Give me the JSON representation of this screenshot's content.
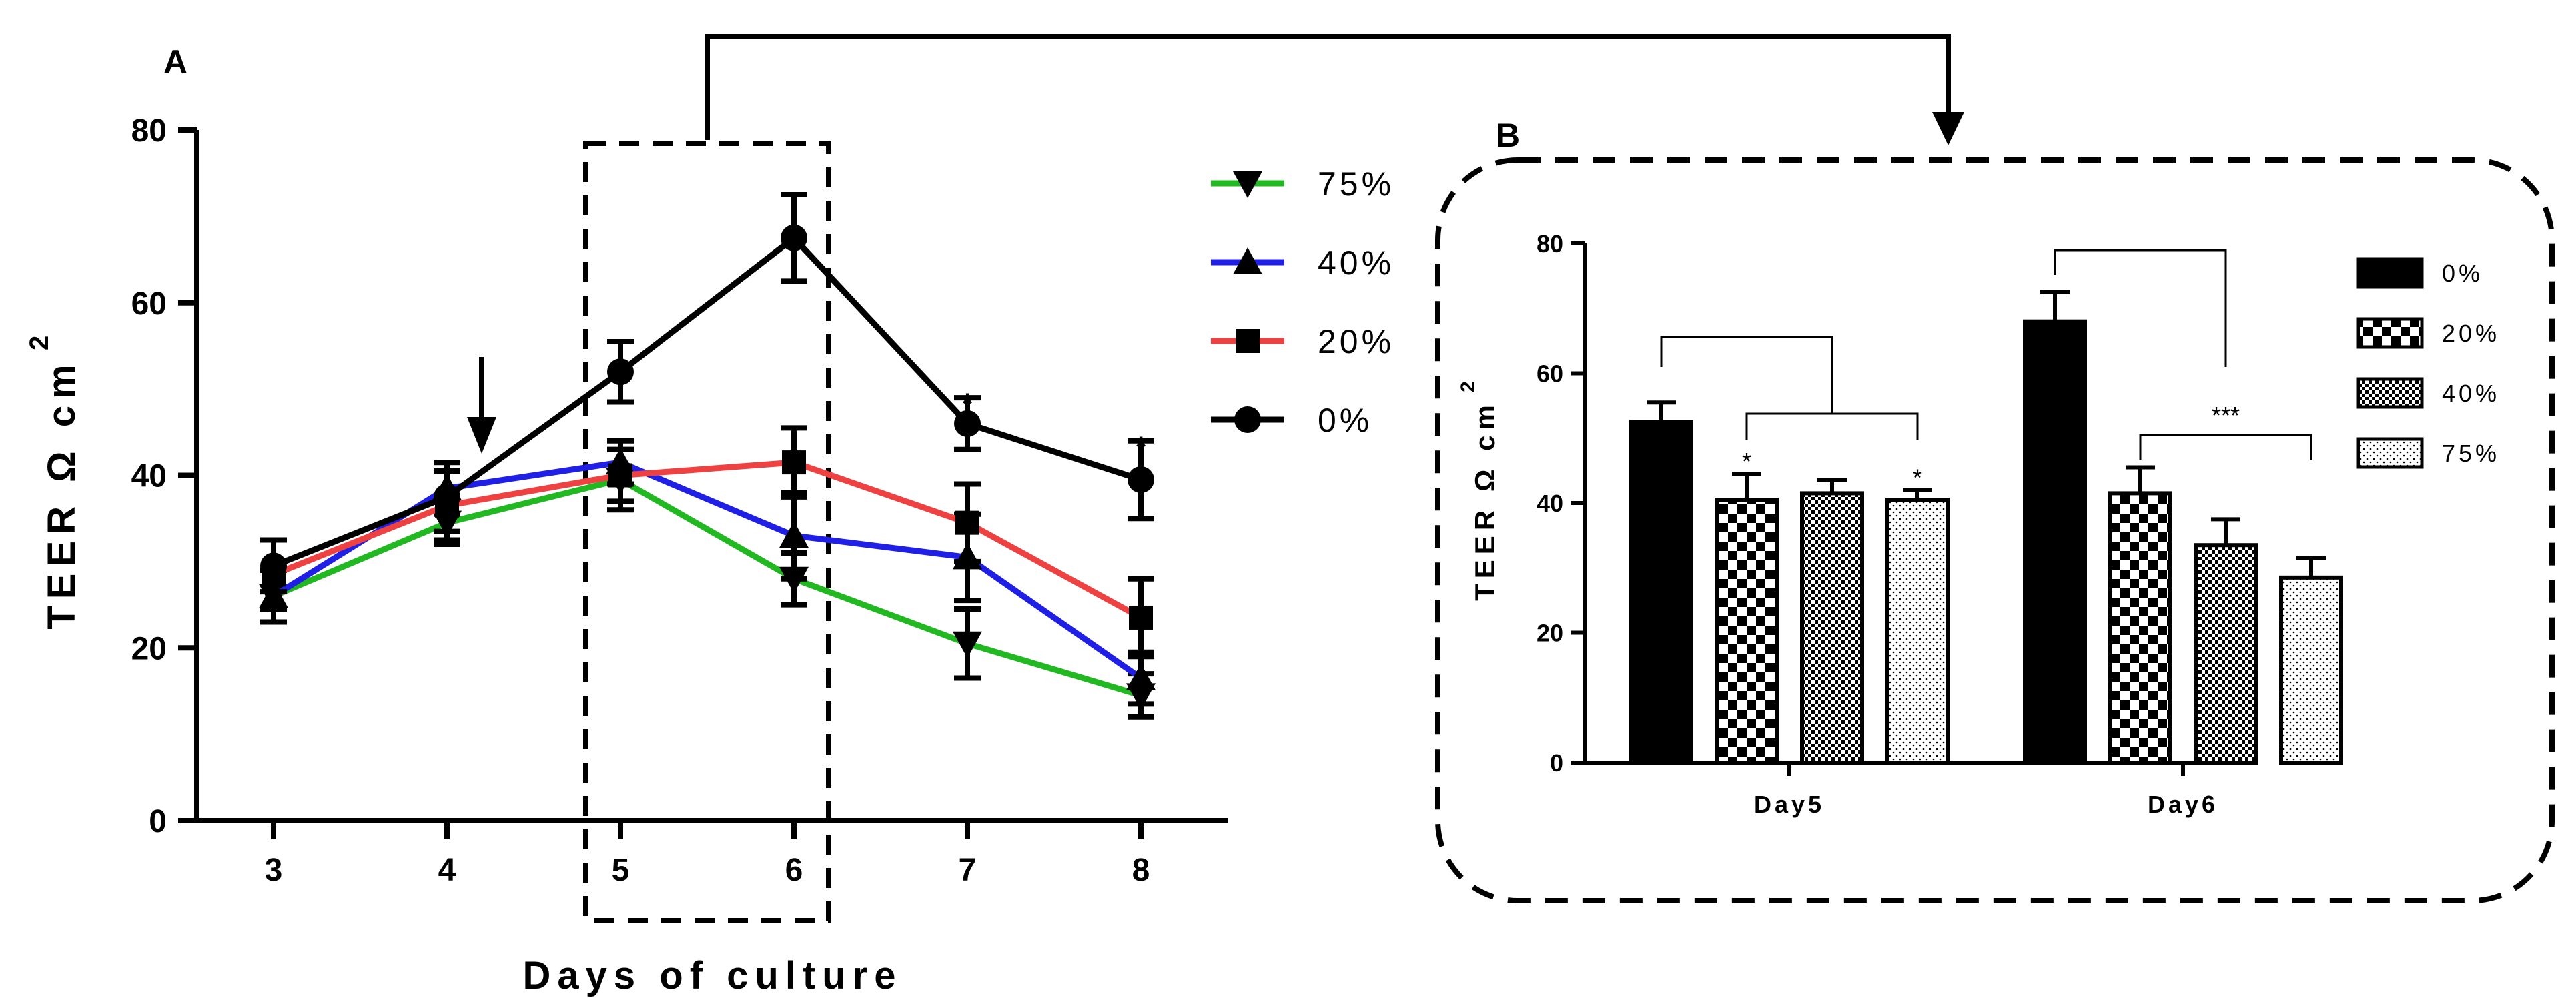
{
  "chart_data": [
    {
      "panel": "A",
      "type": "line",
      "xlabel": "Days of culture",
      "ylabel": "TEER Ω cm",
      "ylabel_superscript": "2",
      "x": [
        3,
        4,
        5,
        6,
        7,
        8
      ],
      "x_tick_labels": [
        "3",
        "4",
        "5",
        "6",
        "7",
        "8"
      ],
      "ylim": [
        0,
        80
      ],
      "y_ticks": [
        0,
        20,
        40,
        60,
        80
      ],
      "series": [
        {
          "name": "75%",
          "color": "#22b822",
          "marker": "triangle-down",
          "values": [
            26,
            34.5,
            39.5,
            28,
            20.5,
            14.5
          ],
          "errors": [
            3,
            2.5,
            3.5,
            3,
            4,
            2.5
          ]
        },
        {
          "name": "40%",
          "color": "#1f1fe6",
          "marker": "triangle-up",
          "values": [
            26,
            38.5,
            41.5,
            33,
            30.5,
            16.5
          ],
          "errors": [
            3,
            3,
            2.5,
            5,
            5,
            3
          ]
        },
        {
          "name": "20%",
          "color": "#ee4242",
          "marker": "square",
          "values": [
            28.5,
            36.5,
            40,
            41.5,
            34.5,
            23.5
          ],
          "errors": [
            4,
            4,
            3,
            4,
            4.5,
            4.5
          ]
        },
        {
          "name": "0%",
          "color": "#000000",
          "marker": "circle",
          "values": [
            29.5,
            37.5,
            52,
            67.5,
            46,
            39.5
          ],
          "errors": [
            3,
            4,
            3.5,
            5,
            3,
            4.5
          ]
        }
      ],
      "annotations": [
        {
          "x": 7,
          "y": 49.5,
          "text": "*"
        },
        {
          "x": 8,
          "y": 44.5,
          "text": "*"
        }
      ],
      "arrow_at_x": 4.2,
      "highlight_box_x": [
        5,
        6
      ]
    },
    {
      "panel": "B",
      "type": "bar",
      "ylabel": "TEER Ω cm",
      "ylabel_superscript": "2",
      "categories": [
        "Day5",
        "Day6"
      ],
      "ylim": [
        0,
        80
      ],
      "y_ticks": [
        0,
        20,
        40,
        60,
        80
      ],
      "series": [
        {
          "name": "0%",
          "pattern": "solid",
          "values": [
            52.5,
            68
          ],
          "errors": [
            3,
            4.5
          ]
        },
        {
          "name": "20%",
          "pattern": "checker",
          "values": [
            40.5,
            41.5
          ],
          "errors": [
            4,
            4
          ]
        },
        {
          "name": "40%",
          "pattern": "fine-checker",
          "values": [
            41.5,
            33.5
          ],
          "errors": [
            2,
            4
          ]
        },
        {
          "name": "75%",
          "pattern": "dots",
          "values": [
            40.5,
            28.5
          ],
          "errors": [
            1.5,
            3
          ]
        }
      ],
      "bar_annotations": [
        {
          "category": 0,
          "series": 1,
          "text": "*"
        },
        {
          "category": 0,
          "series": 3,
          "text": "*"
        }
      ],
      "comparison_label": "***"
    }
  ]
}
